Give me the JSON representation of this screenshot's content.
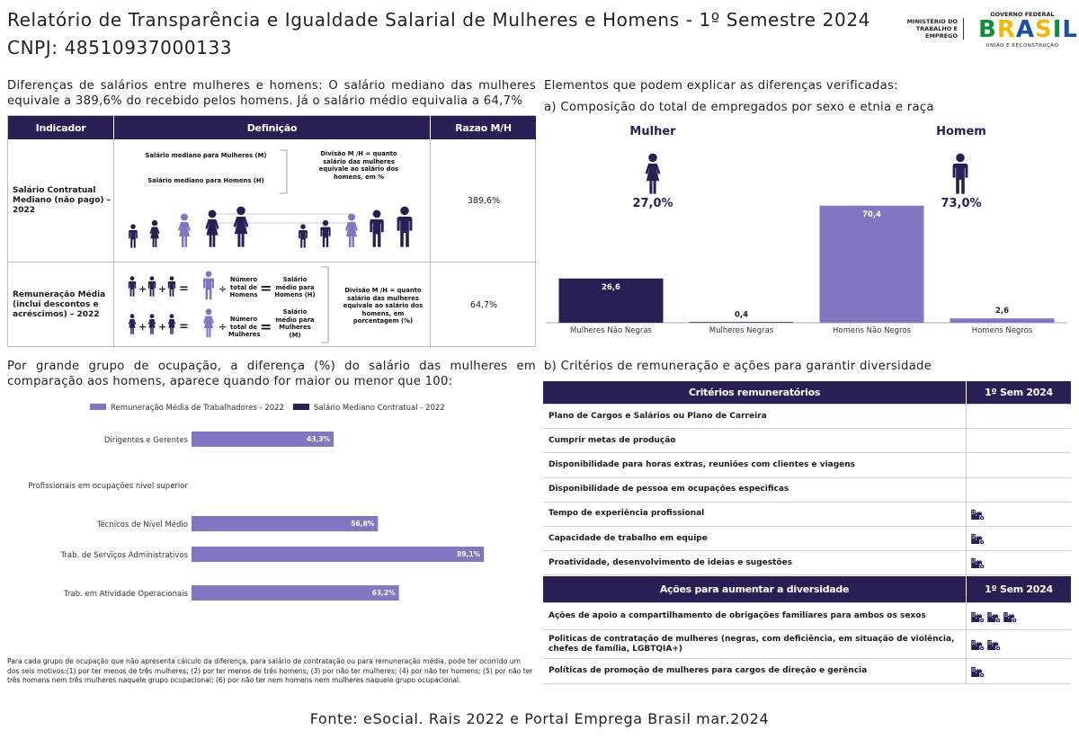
{
  "header": {
    "title": "Relatório de Transparência e Igualdade Salarial de Mulheres e Homens - 1º Semestre 2024",
    "cnpj": "CNPJ: 48510937000133",
    "ministerio": "MINISTÉRIO DO TRABALHO E EMPREGO",
    "gov_federal": "GOVERNO FEDERAL",
    "brasil": "BRASIL",
    "uniao": "UNIÃO E RECONSTRUÇÃO"
  },
  "left_intro": "Diferenças de salários entre mulheres e homens: O salário mediano das mulheres equivale a 389,6% do recebido pelos homens. Já o salário médio equivalia a 64,7%",
  "indicator_table": {
    "headers": [
      "Indicador",
      "Definição",
      "Razao M/H"
    ],
    "rows": [
      {
        "indicator": "Salário Contratual Mediano (não pago) – 2022",
        "ratio": "389,6%",
        "def_a": "Salário mediano para Mulheres (M)",
        "def_b": "Salário mediano para Homens (H)",
        "def_c": "Divisão M /H = quanto salário das mulheres equivale ao salário dos homens, em %"
      },
      {
        "indicator": "Remuneração Média (inclui descontos e acréscimos) – 2022",
        "ratio": "64,7%",
        "num_men": "Número total de Homens",
        "num_women": "Número total de Mulheres",
        "avg_men": "Salário médio para Homens (H)",
        "avg_women": "Salário médio para Mulheres (M)",
        "div_text": "Divisão M /H = quanto salário das mulheres equivale ao salário dos homens, em porcentagem (%)"
      }
    ]
  },
  "right_intro": "Elementos que podem explicar as diferenças verificadas:",
  "section_a": "a) Composição do total de empregados por sexo e etnia e raça",
  "composition": {
    "woman_label": "Mulher",
    "woman_pct": "27,0%",
    "man_label": "Homem",
    "man_pct": "73,0%"
  },
  "chart_data": [
    {
      "type": "bar",
      "categories": [
        "Mulheres Não Negras",
        "Mulheres Negras",
        "Homens Não Negros",
        "Homens Negros"
      ],
      "values": [
        26.6,
        0.4,
        70.4,
        2.6
      ],
      "labels": [
        "26,6",
        "0,4",
        "70,4",
        "2,6"
      ],
      "colors": [
        "#2a1f55",
        "#2a1f55",
        "#8275c2",
        "#8275c2"
      ],
      "ylim": [
        0,
        100
      ]
    },
    {
      "type": "bar",
      "orientation": "horizontal",
      "categories": [
        "Dirigentes e Gerentes",
        "Profissionais em ocupações nível superior",
        "Técnicos de Nível Médio",
        "Trab. de Serviços Administrativos",
        "Trab. em Atividade Operacionais"
      ],
      "series": [
        {
          "name": "Remuneração Média de Trabalhadores - 2022",
          "color": "#8275c2",
          "values": [
            43.3,
            null,
            56.8,
            89.1,
            63.2
          ],
          "labels": [
            "43,3%",
            "",
            "56,8%",
            "89,1%",
            "63,2%"
          ]
        },
        {
          "name": "Salário Mediano Contratual - 2022",
          "color": "#2a1f55",
          "values": [
            null,
            null,
            null,
            null,
            null
          ]
        }
      ],
      "xlim": [
        0,
        135
      ]
    }
  ],
  "occ_intro": "Por grande grupo de ocupação, a diferença (%) do salário das mulheres em comparação aos homens, aparece quando for maior ou menor que 100:",
  "footnote": "Para cada grupo de ocupação que não apresenta cálculo da diferença, para salário de contratação ou para remuneração média, pode ter ocorrido um dos seis motivos:(1) por ter menos de três mulheres; (2) por ter menos de três homens; (3) por não ter mulheres; (4) por não ter homens; (5) por não ter três homens nem três mulheres naquele grupo ocupacional; (6) por não ter nem homens nem mulheres naquele grupo ocupacional.",
  "section_b": "b) Critérios de remuneração e ações para garantir diversidade",
  "criteria": {
    "header": "Critérios remuneratórios",
    "sem_header": "1º Sem 2024",
    "rows": [
      {
        "label": "Plano de Cargos e Salários ou Plano de Carreira",
        "icons": 0
      },
      {
        "label": "Cumprir metas de produção",
        "icons": 0
      },
      {
        "label": "Disponibilidade para horas extras, reuniões com clientes e viagens",
        "icons": 0
      },
      {
        "label": "Disponibilidade de pessoa em ocupações especificas",
        "icons": 0
      },
      {
        "label": "Tempo de experiência profissional",
        "icons": 1
      },
      {
        "label": "Capacidade de trabalho em equipe",
        "icons": 1
      },
      {
        "label": "Proatividade, desenvolvimento de ideias e sugestões",
        "icons": 1
      }
    ]
  },
  "diversity": {
    "header": "Ações para aumentar a diversidade",
    "sem_header": "1º Sem 2024",
    "rows": [
      {
        "label": "Ações de apoio a compartilhamento de obrigações familiares para ambos os sexos",
        "icons": 3
      },
      {
        "label": "Politicas de contratação de mulheres (negras, com deficiência, em situação de violência, chefes de família, LGBTQIA+)",
        "icons": 2
      },
      {
        "label": "Políticas de promoção de mulheres para cargos de direção e gerência",
        "icons": 1
      }
    ]
  },
  "source": "Fonte: eSocial. Rais 2022 e Portal Emprega Brasil mar.2024"
}
